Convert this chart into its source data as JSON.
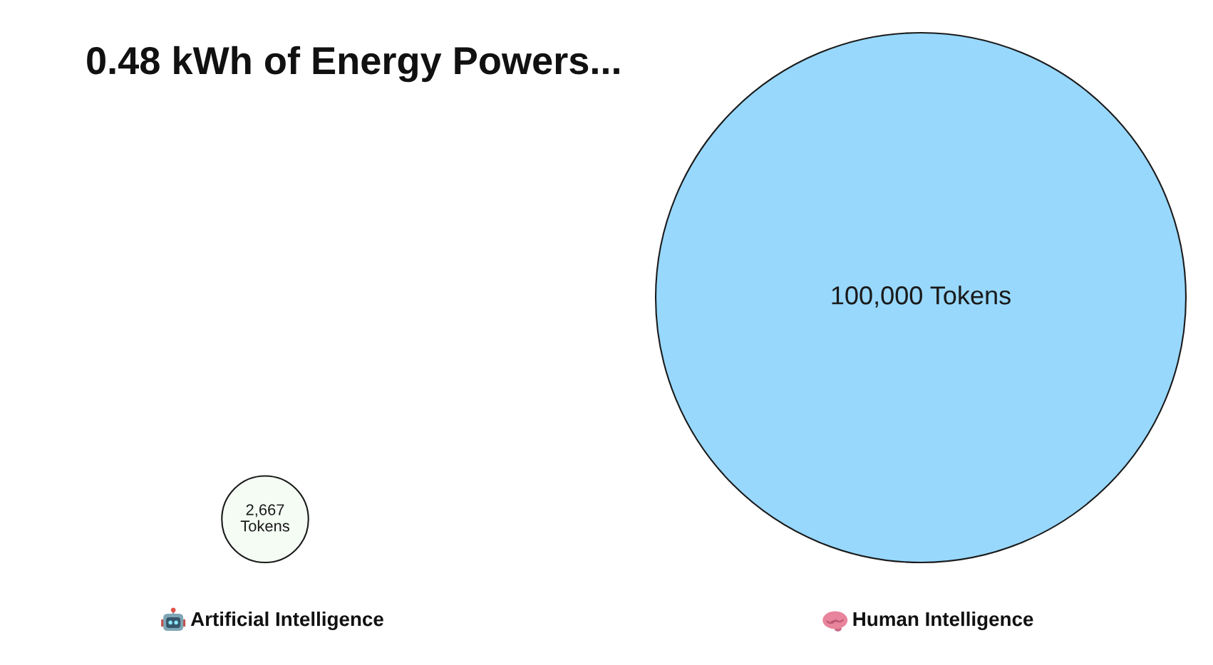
{
  "chart_data": {
    "type": "other",
    "title": "0.48 kWh of Energy Powers...",
    "categories": [
      "Artificial Intelligence",
      "Human Intelligence"
    ],
    "values": [
      2667,
      100000
    ],
    "colors": [
      "#f4fcf4",
      "#98d8fd"
    ],
    "value_labels": [
      "2,667\nTokens",
      "100,000 Tokens"
    ]
  }
}
